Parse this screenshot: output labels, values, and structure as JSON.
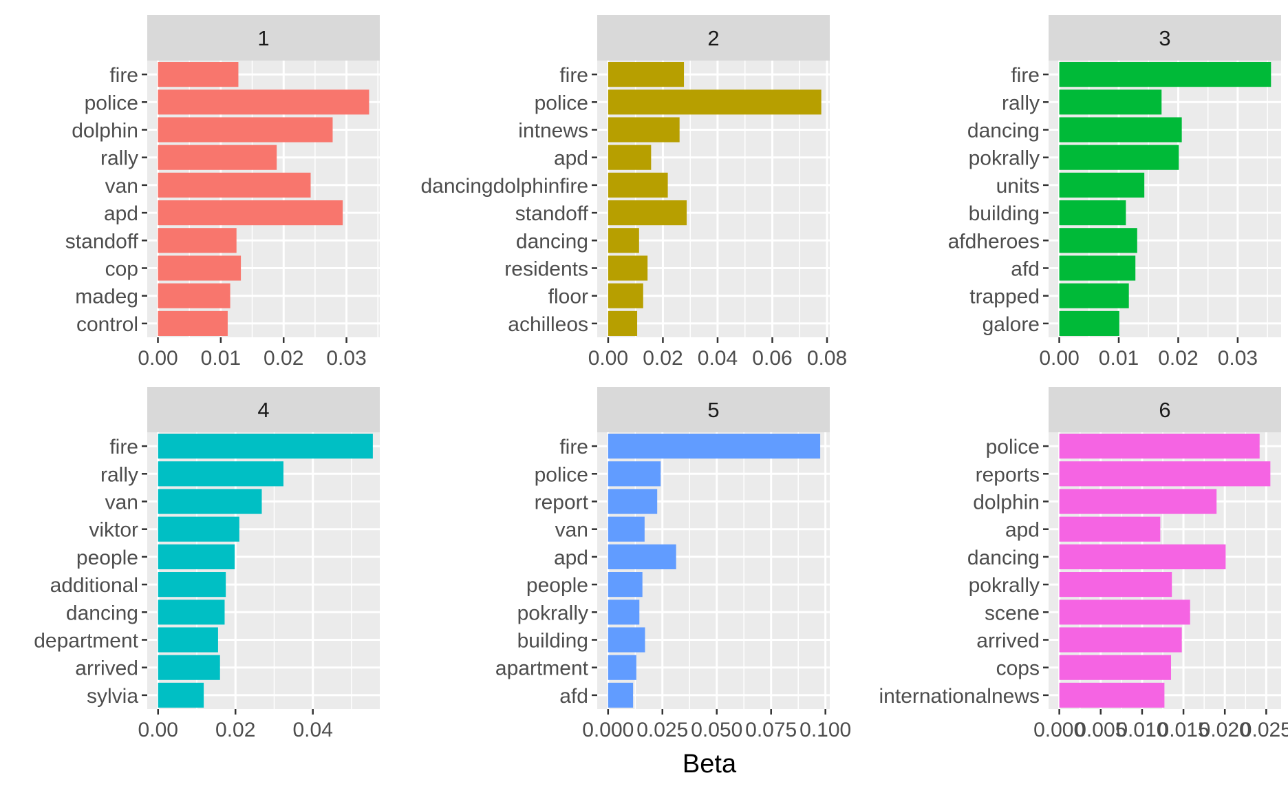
{
  "chart_data": {
    "type": "bar",
    "orientation": "horizontal",
    "facet": "wrap",
    "xlabel": "Beta",
    "ylabel": "",
    "title": "",
    "grid": true,
    "legend": "none",
    "panels": [
      {
        "label": "1",
        "color": "#F8766D",
        "xlim": [
          -0.0017,
          0.0353
        ],
        "ticks": [
          0,
          0.01,
          0.02,
          0.03
        ],
        "tick_labels": [
          "0.00",
          "0.01",
          "0.02",
          "0.03"
        ],
        "categories": [
          "fire",
          "police",
          "dolphin",
          "rally",
          "van",
          "apd",
          "standoff",
          "cop",
          "madeg",
          "control"
        ],
        "values": [
          0.0128,
          0.0336,
          0.0278,
          0.0189,
          0.0243,
          0.0294,
          0.0125,
          0.0132,
          0.0115,
          0.0111
        ]
      },
      {
        "label": "2",
        "color": "#B79F00",
        "xlim": [
          -0.004,
          0.081
        ],
        "ticks": [
          0,
          0.02,
          0.04,
          0.06,
          0.08
        ],
        "tick_labels": [
          "0.00",
          "0.02",
          "0.04",
          "0.06",
          "0.08"
        ],
        "categories": [
          "fire",
          "police",
          "intnews",
          "apd",
          "dancingdolphinfire",
          "standoff",
          "dancing",
          "residents",
          "floor",
          "achilleos"
        ],
        "values": [
          0.0277,
          0.0779,
          0.0261,
          0.0157,
          0.0218,
          0.0287,
          0.0113,
          0.0144,
          0.0128,
          0.0106
        ]
      },
      {
        "label": "3",
        "color": "#00BA38",
        "xlim": [
          -0.0018,
          0.0373
        ],
        "ticks": [
          0,
          0.01,
          0.02,
          0.03
        ],
        "tick_labels": [
          "0.00",
          "0.01",
          "0.02",
          "0.03"
        ],
        "categories": [
          "fire",
          "rally",
          "dancing",
          "pokrally",
          "units",
          "building",
          "afdheroes",
          "afd",
          "trapped",
          "galore"
        ],
        "values": [
          0.0356,
          0.0172,
          0.0206,
          0.0201,
          0.0143,
          0.0112,
          0.0131,
          0.0128,
          0.0117,
          0.0101
        ]
      },
      {
        "label": "4",
        "color": "#00BFC4",
        "xlim": [
          -0.0028,
          0.0573
        ],
        "ticks": [
          0,
          0.02,
          0.04
        ],
        "tick_labels": [
          "0.00",
          "0.02",
          "0.04"
        ],
        "categories": [
          "fire",
          "rally",
          "van",
          "viktor",
          "people",
          "additional",
          "dancing",
          "department",
          "arrived",
          "sylvia"
        ],
        "values": [
          0.0555,
          0.0324,
          0.0268,
          0.021,
          0.0198,
          0.0175,
          0.0172,
          0.0155,
          0.016,
          0.0118
        ]
      },
      {
        "label": "5",
        "color": "#619CFF",
        "xlim": [
          -0.005,
          0.102
        ],
        "ticks": [
          0,
          0.025,
          0.05,
          0.075,
          0.1
        ],
        "tick_labels": [
          "0.000",
          "0.025",
          "0.050",
          "0.075",
          "0.100"
        ],
        "categories": [
          "fire",
          "police",
          "report",
          "van",
          "apd",
          "people",
          "pokrally",
          "building",
          "apartment",
          "afd"
        ],
        "values": [
          0.0976,
          0.0242,
          0.0226,
          0.0168,
          0.0313,
          0.0158,
          0.0144,
          0.017,
          0.013,
          0.0115
        ]
      },
      {
        "label": "6",
        "color": "#F564E3",
        "xlim": [
          -0.0013,
          0.0268
        ],
        "ticks": [
          0,
          0.005,
          0.01,
          0.015,
          0.02,
          0.025
        ],
        "tick_labels": [
          "0.000",
          "0.005",
          "0.010",
          "0.015",
          "0.020",
          "0.025"
        ],
        "categories": [
          "police",
          "reports",
          "dolphin",
          "apd",
          "dancing",
          "pokrally",
          "scene",
          "arrived",
          "cops",
          "internationalnews"
        ],
        "values": [
          0.0242,
          0.0255,
          0.019,
          0.0122,
          0.0201,
          0.0136,
          0.0158,
          0.0148,
          0.0135,
          0.0127
        ]
      }
    ]
  }
}
